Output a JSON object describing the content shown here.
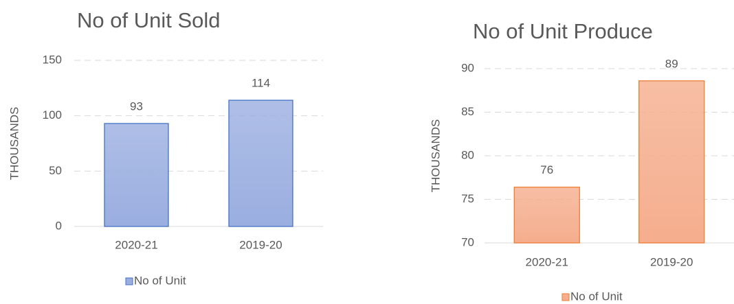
{
  "chart_data": [
    {
      "type": "bar",
      "title": "No of Unit Sold",
      "y_label": "THOUSANDS",
      "categories": [
        "2020-21",
        "2019-20"
      ],
      "series": [
        {
          "name": "No of Unit",
          "color": "#9aaee0",
          "edge_color": "#4472c4",
          "values": [
            93,
            114
          ]
        }
      ],
      "ylim": [
        0,
        150
      ],
      "yticks": [
        0,
        50,
        100,
        150
      ],
      "grid": true,
      "legend": "bottom"
    },
    {
      "type": "bar",
      "title": "No of Unit Produce",
      "y_label": "THOUSANDS",
      "categories": [
        "2020-21",
        "2019-20"
      ],
      "series": [
        {
          "name": "No of Unit",
          "color": "#f5ae8e",
          "edge_color": "#ed7d31",
          "values": [
            76.4,
            88.6
          ],
          "value_labels": [
            "76",
            "89"
          ]
        }
      ],
      "ylim": [
        70,
        90
      ],
      "yticks": [
        70,
        75,
        80,
        85,
        90
      ],
      "grid": true,
      "legend": "bottom"
    }
  ]
}
